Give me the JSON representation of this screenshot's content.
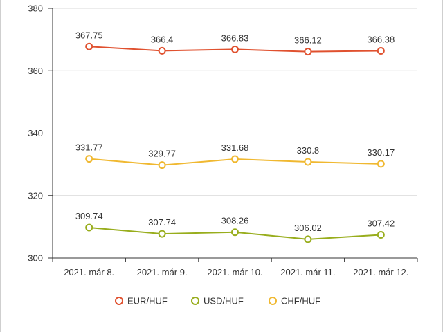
{
  "chart_data": {
    "type": "line",
    "title": "",
    "xlabel": "",
    "ylabel": "",
    "categories": [
      "2021. már 8.",
      "2021. már 9.",
      "2021. már 10.",
      "2021. már 11.",
      "2021. már 12."
    ],
    "ylim": [
      300,
      380
    ],
    "yticks": [
      "300",
      "320",
      "340",
      "360",
      "380"
    ],
    "grid": true,
    "legend_position": "bottom",
    "series": [
      {
        "name": "EUR/HUF",
        "color": "#e0512f",
        "values": [
          367.75,
          366.4,
          366.83,
          366.12,
          366.38
        ],
        "labels": [
          "367.75",
          "366.4",
          "366.83",
          "366.12",
          "366.38"
        ]
      },
      {
        "name": "USD/HUF",
        "color": "#98ad1c",
        "values": [
          309.74,
          307.74,
          308.26,
          306.02,
          307.42
        ],
        "labels": [
          "309.74",
          "307.74",
          "308.26",
          "306.02",
          "307.42"
        ]
      },
      {
        "name": "CHF/HUF",
        "color": "#f0b830",
        "values": [
          331.77,
          329.77,
          331.68,
          330.8,
          330.17
        ],
        "labels": [
          "331.77",
          "329.77",
          "331.68",
          "330.8",
          "330.17"
        ]
      }
    ]
  }
}
